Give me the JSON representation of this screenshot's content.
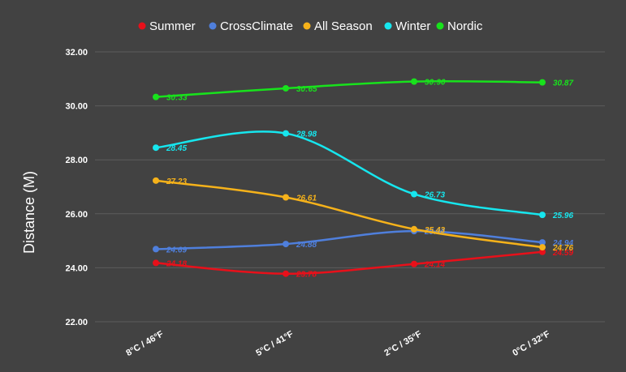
{
  "chart_data": {
    "type": "line",
    "categories": [
      "8°C / 46°F",
      "5°C / 41°F",
      "2°C / 35°F",
      "0°C / 32°F"
    ],
    "ylabel": "Distance (M)",
    "ylim": [
      22,
      32
    ],
    "yticks": [
      "22.00",
      "24.00",
      "26.00",
      "28.00",
      "30.00",
      "32.00"
    ],
    "grid": true,
    "legend_position": "top",
    "series": [
      {
        "name": "Summer",
        "color": "#e8101a",
        "values": [
          24.18,
          23.78,
          24.14,
          24.59
        ],
        "labels": [
          "24.18",
          "23.78",
          "24.14",
          "24.59"
        ]
      },
      {
        "name": "CrossClimate",
        "color": "#4f7fdc",
        "values": [
          24.69,
          24.88,
          25.36,
          24.94
        ],
        "labels": [
          "24.69",
          "24.88",
          "25.36",
          "24.94"
        ]
      },
      {
        "name": "All Season",
        "color": "#f6b21a",
        "values": [
          27.23,
          26.61,
          25.43,
          24.76
        ],
        "labels": [
          "27.23",
          "26.61",
          "25.43",
          "24.76"
        ]
      },
      {
        "name": "Winter",
        "color": "#16e6ee",
        "values": [
          28.45,
          28.98,
          26.73,
          25.96
        ],
        "labels": [
          "28.45",
          "28.98",
          "26.73",
          "25.96"
        ]
      },
      {
        "name": "Nordic",
        "color": "#18e21c",
        "values": [
          30.33,
          30.65,
          30.9,
          30.87
        ],
        "labels": [
          "30:33",
          "30:65",
          "30:90",
          "30.87"
        ]
      }
    ]
  }
}
